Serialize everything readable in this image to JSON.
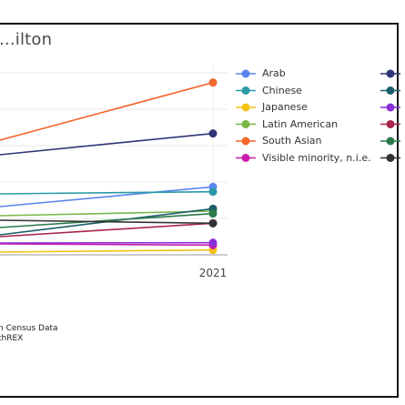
{
  "chart_data": {
    "type": "line",
    "title": "...ilton",
    "x": [
      "2021"
    ],
    "grid": true,
    "legend_position": "right",
    "series": [
      {
        "name": "Arab",
        "color": "#5b84ee",
        "end_value": 28
      },
      {
        "name": "Chinese",
        "color": "#2a9aa8",
        "end_value": 26
      },
      {
        "name": "Japanese",
        "color": "#f4c114",
        "end_value": 2
      },
      {
        "name": "Latin American",
        "color": "#7ab648",
        "end_value": 18
      },
      {
        "name": "South Asian",
        "color": "#f2672d",
        "end_value": 71
      },
      {
        "name": "Visible minority, n.i.e.",
        "color": "#c81cae",
        "end_value": 4
      },
      {
        "name": "",
        "color": "#2e3575",
        "end_value": 50
      },
      {
        "name": "",
        "color": "#1b5f6a",
        "end_value": 19
      },
      {
        "name": "",
        "color": "#8b2fd8",
        "end_value": 5
      },
      {
        "name": "",
        "color": "#a8264b",
        "end_value": 13
      },
      {
        "name": "",
        "color": "#2b7a4c",
        "end_value": 17
      },
      {
        "name": "",
        "color": "#333333",
        "end_value": 13
      }
    ]
  },
  "source_lines": [
    "n Census Data",
    "thREX"
  ]
}
